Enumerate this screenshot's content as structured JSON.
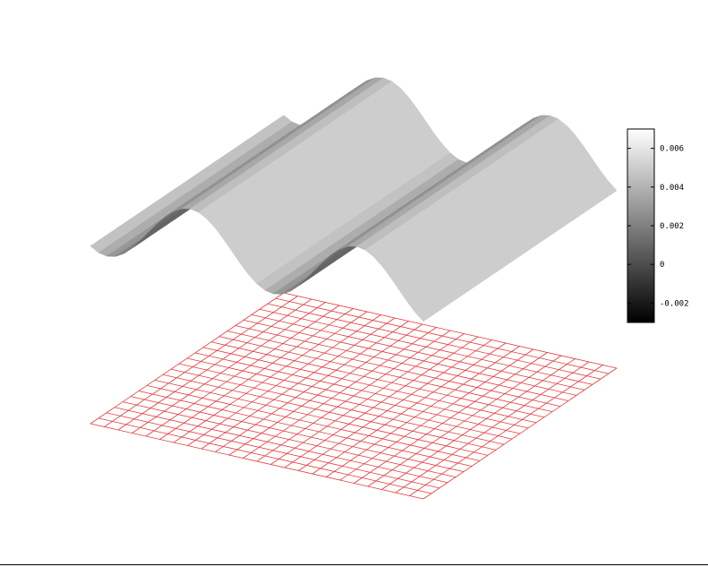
{
  "chart_data": {
    "type": "surface",
    "title": "",
    "xlabel": "",
    "ylabel": "",
    "zlabel": "",
    "surface": {
      "description_of_shape": "two sinusoidal ridges along the y direction",
      "z_min": -0.0025,
      "z_max": 0.0066,
      "grid_steps": 40
    },
    "base_grid": {
      "cells": 24,
      "color": "#e33b3b"
    },
    "colorbar": {
      "colormap": "gray",
      "range": [
        -0.003,
        0.007
      ],
      "ticks": [
        {
          "value": 0.006,
          "label": "0.006"
        },
        {
          "value": 0.004,
          "label": "0.004"
        },
        {
          "value": 0.002,
          "label": "0.002"
        },
        {
          "value": 0,
          "label": "0"
        },
        {
          "value": -0.002,
          "label": "-0.002"
        }
      ]
    },
    "grid": false,
    "legend": "colorbar right"
  }
}
